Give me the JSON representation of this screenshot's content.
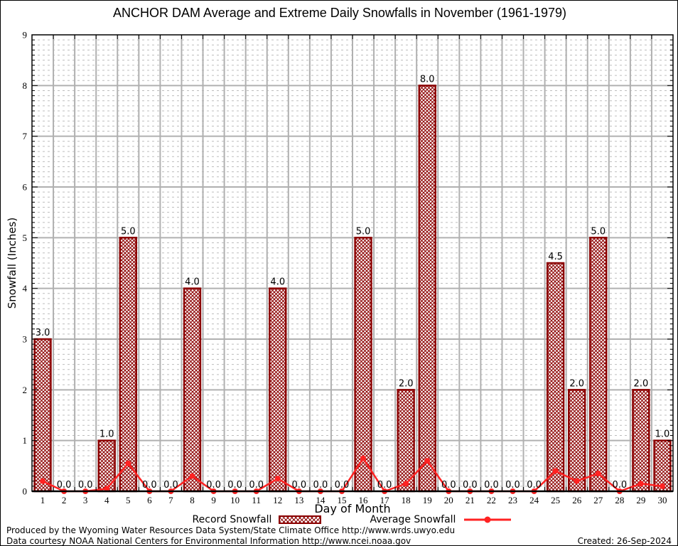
{
  "title": "ANCHOR DAM Average and Extreme Daily Snowfalls in November (1961-1979)",
  "legend": {
    "record_label": "Record Snowfall",
    "average_label": "Average Snowfall"
  },
  "footer": {
    "line1": "Produced by the Wyoming Water Resources Data System/State Climate Office http://www.wrds.uwyo.edu",
    "line2": "Data courtesy NOAA National Centers for Environmental Information http://www.ncei.noaa.gov",
    "created": "Created: 26-Sep-2024"
  },
  "chart_data": {
    "type": "bar",
    "title": "ANCHOR DAM Average and Extreme Daily Snowfalls in November (1961-1979)",
    "xlabel": "Day of Month",
    "ylabel": "Snowfall (Inches)",
    "ylim": [
      0,
      9
    ],
    "y_major_step": 1,
    "y_minor_step": 0.1,
    "grid": "major solid gray, minor dashed light gray",
    "legend_position": "bottom center",
    "categories": [
      1,
      2,
      3,
      4,
      5,
      6,
      7,
      8,
      9,
      10,
      11,
      12,
      13,
      14,
      15,
      16,
      17,
      18,
      19,
      20,
      21,
      22,
      23,
      24,
      25,
      26,
      27,
      28,
      29,
      30
    ],
    "series": [
      {
        "name": "Record Snowfall",
        "type": "bar",
        "values": [
          3.0,
          0.0,
          0.0,
          1.0,
          5.0,
          0.0,
          0.0,
          4.0,
          0.0,
          0.0,
          0.0,
          4.0,
          0.0,
          0.0,
          0.0,
          5.0,
          0.0,
          2.0,
          8.0,
          0.0,
          0.0,
          0.0,
          0.0,
          0.0,
          4.5,
          2.0,
          5.0,
          0.0,
          2.0,
          1.0
        ],
        "data_labels": [
          "3.0",
          "0.0",
          "0.0",
          "1.0",
          "5.0",
          "0.0",
          "0.0",
          "4.0",
          "0.0",
          "0.0",
          "0.0",
          "4.0",
          "0.0",
          "0.0",
          "0.0",
          "5.0",
          "0.0",
          "2.0",
          "8.0",
          "0.0",
          "0.0",
          "0.0",
          "0.0",
          "0.0",
          "4.5",
          "2.0",
          "5.0",
          "0.0",
          "2.0",
          "1.0"
        ]
      },
      {
        "name": "Average Snowfall",
        "type": "line",
        "values": [
          0.2,
          0.0,
          0.0,
          0.05,
          0.55,
          0.0,
          0.0,
          0.3,
          0.0,
          0.0,
          0.0,
          0.25,
          0.0,
          0.0,
          0.0,
          0.65,
          0.0,
          0.15,
          0.6,
          0.0,
          0.0,
          0.0,
          0.0,
          0.0,
          0.4,
          0.2,
          0.35,
          0.0,
          0.15,
          0.1
        ]
      }
    ],
    "colors": {
      "bar": "#8b0000",
      "bar_fill": "crosshatch dark red on white",
      "line": "#ff2222",
      "grid_major": "#b0b0b0",
      "grid_minor": "#bdbdbd",
      "frame": "#000000",
      "text": "#000000"
    }
  }
}
